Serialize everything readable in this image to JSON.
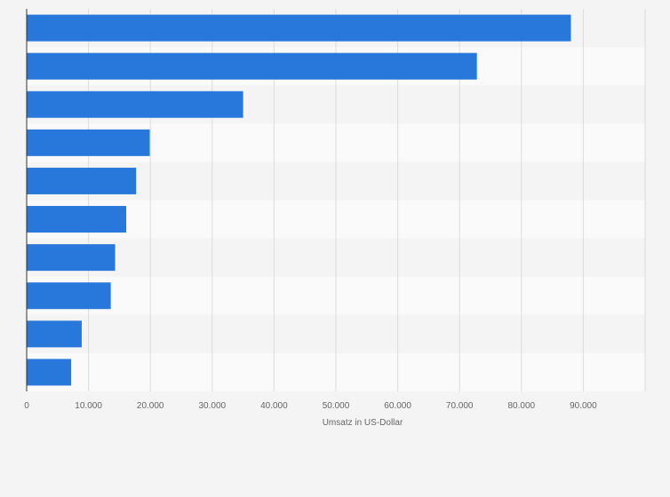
{
  "chart_data": {
    "type": "bar",
    "orientation": "horizontal",
    "title": "",
    "xlabel": "Umsatz in US-Dollar",
    "ylabel": "",
    "categories": [
      "",
      "",
      "",
      "",
      "",
      "",
      "",
      "",
      "",
      ""
    ],
    "values": [
      88000,
      72800,
      35000,
      19900,
      17700,
      16100,
      14300,
      13600,
      8900,
      7200
    ],
    "xlim": [
      0,
      100000
    ],
    "x_ticks": [
      0,
      10000,
      20000,
      30000,
      40000,
      50000,
      60000,
      70000,
      80000,
      90000
    ],
    "x_tick_labels": [
      "0",
      "10.000",
      "20.000",
      "30.000",
      "40.000",
      "50.000",
      "60.000",
      "70.000",
      "80.000",
      "90.000"
    ],
    "grid": true,
    "colors": {
      "bar": "#2878dc",
      "background": "#f4f4f4",
      "band_dark": "#f4f4f4",
      "band_light": "#fafafa",
      "grid": "#dcdcdc",
      "axis": "#333333"
    }
  }
}
